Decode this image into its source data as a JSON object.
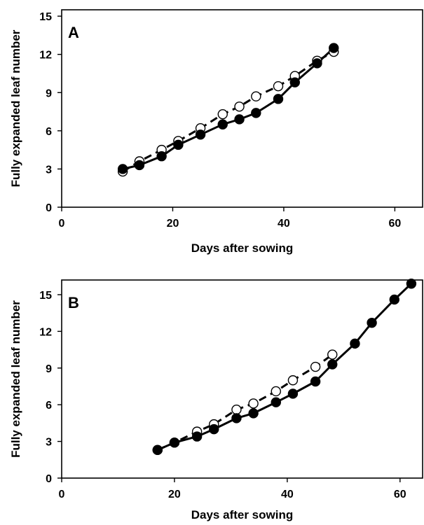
{
  "chart_data": [
    {
      "type": "line",
      "panel_label": "A",
      "xlabel": "Days after sowing",
      "ylabel": "Fully expanded leaf number",
      "xlim": [
        0,
        65
      ],
      "ylim": [
        0,
        15.5
      ],
      "xticks": [
        0,
        20,
        40,
        60
      ],
      "yticks": [
        0,
        3,
        6,
        9,
        12,
        15
      ],
      "grid": false,
      "series": [
        {
          "marker": "open-circle",
          "line_style": "dashed",
          "x": [
            11,
            14,
            18,
            21,
            25,
            29,
            32,
            35,
            39,
            42,
            46,
            49
          ],
          "y": [
            2.8,
            3.6,
            4.5,
            5.2,
            6.2,
            7.3,
            7.9,
            8.7,
            9.5,
            10.3,
            11.5,
            12.2
          ]
        },
        {
          "marker": "filled-circle",
          "line_style": "solid",
          "x": [
            11,
            14,
            18,
            21,
            25,
            29,
            32,
            35,
            39,
            42,
            46,
            49
          ],
          "y": [
            3.0,
            3.3,
            4.0,
            4.9,
            5.7,
            6.5,
            6.9,
            7.4,
            8.5,
            9.8,
            11.3,
            12.5
          ]
        }
      ]
    },
    {
      "type": "line",
      "panel_label": "B",
      "xlabel": "Days after sowing",
      "ylabel": "Fully expanded leaf number",
      "xlim": [
        0,
        64
      ],
      "ylim": [
        0,
        16.2
      ],
      "xticks": [
        0,
        20,
        40,
        60
      ],
      "yticks": [
        0,
        3,
        6,
        9,
        12,
        15
      ],
      "grid": false,
      "series": [
        {
          "marker": "open-circle",
          "line_style": "dashed",
          "x": [
            17,
            20,
            24,
            27,
            31,
            34,
            38,
            41,
            45,
            48
          ],
          "y": [
            2.3,
            2.9,
            3.8,
            4.4,
            5.6,
            6.1,
            7.1,
            8.0,
            9.1,
            10.1
          ]
        },
        {
          "marker": "filled-circle",
          "line_style": "solid",
          "x": [
            17,
            20,
            24,
            27,
            31,
            34,
            38,
            41,
            45,
            48,
            52,
            55,
            59,
            62
          ],
          "y": [
            2.3,
            2.9,
            3.4,
            4.0,
            4.9,
            5.3,
            6.2,
            6.9,
            7.9,
            9.3,
            11.0,
            12.7,
            14.6,
            15.9
          ]
        }
      ]
    }
  ]
}
